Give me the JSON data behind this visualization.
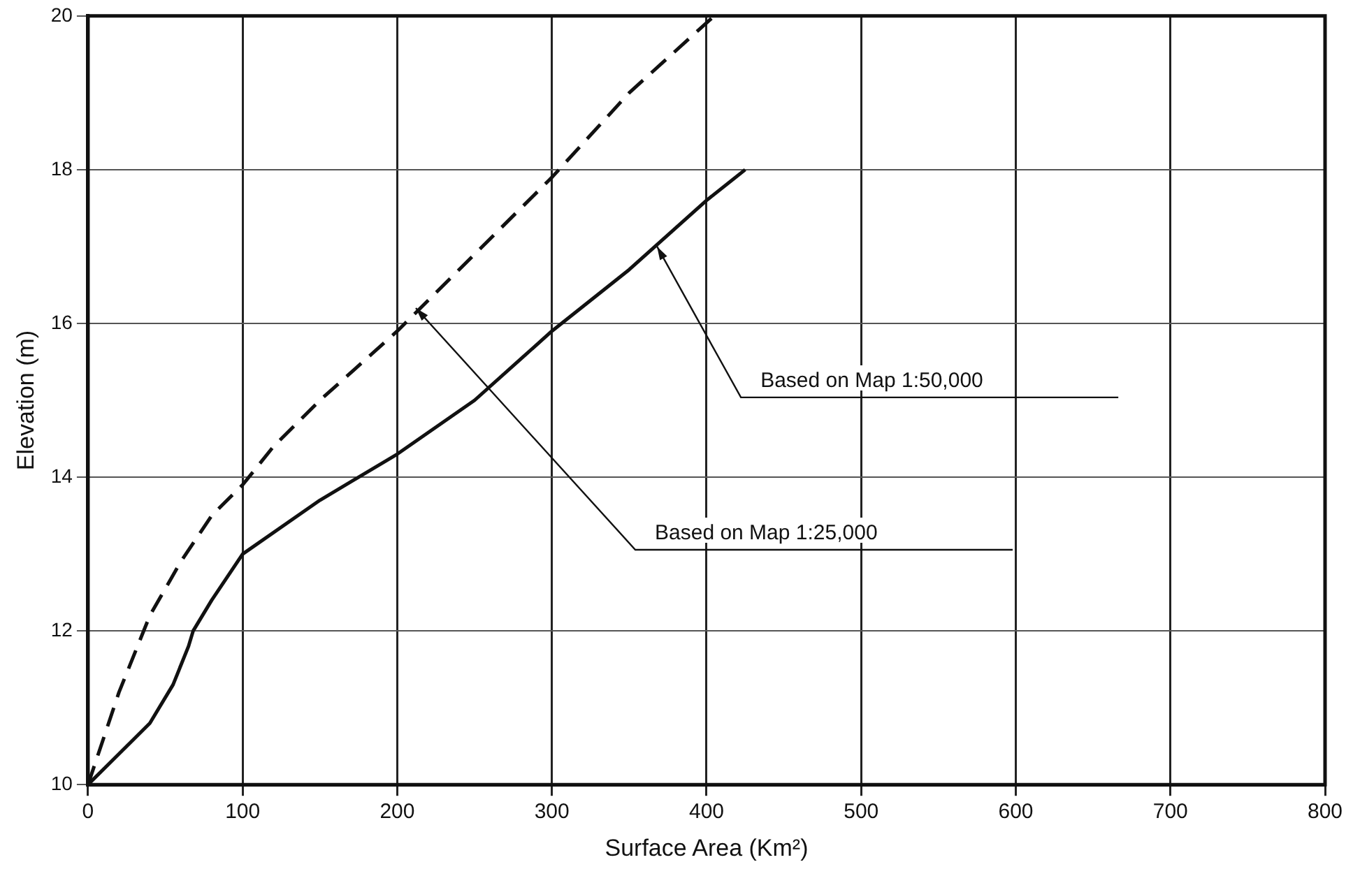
{
  "chart_data": {
    "type": "line",
    "xlabel": "Surface Area (Km²)",
    "ylabel": "Elevation (m)",
    "xlim": [
      0,
      800
    ],
    "xticks": [
      0,
      100,
      200,
      300,
      400,
      500,
      600,
      700,
      800
    ],
    "ylim": [
      10,
      20
    ],
    "yticks": [
      10,
      12,
      14,
      16,
      18,
      20
    ],
    "grid": true,
    "legend": false,
    "marker": "none",
    "series": [
      {
        "color": "#111111",
        "line_style": "solid",
        "x": [
          0,
          20,
          40,
          55,
          65,
          68,
          80,
          100,
          150,
          200,
          250,
          300,
          350,
          400,
          425
        ],
        "values": [
          10,
          10.4,
          10.8,
          11.3,
          11.8,
          12,
          12.4,
          13,
          13.7,
          14.3,
          15,
          15.9,
          16.7,
          17.6,
          18
        ]
      },
      {
        "color": "#111111",
        "line_style": "dashed",
        "x": [
          0,
          10,
          20,
          40,
          60,
          80,
          100,
          120,
          150,
          200,
          250,
          300,
          350,
          405
        ],
        "values": [
          10,
          10.6,
          11.2,
          12.2,
          12.9,
          13.5,
          13.9,
          14.4,
          15,
          15.9,
          16.9,
          17.9,
          19,
          20
        ]
      }
    ],
    "annotations": [
      {
        "text": "Based on Map 1:50,000",
        "x": 368,
        "y": 17
      },
      {
        "text": "Based on Map 1:25,000",
        "x": 212,
        "y": 16.2
      }
    ]
  }
}
